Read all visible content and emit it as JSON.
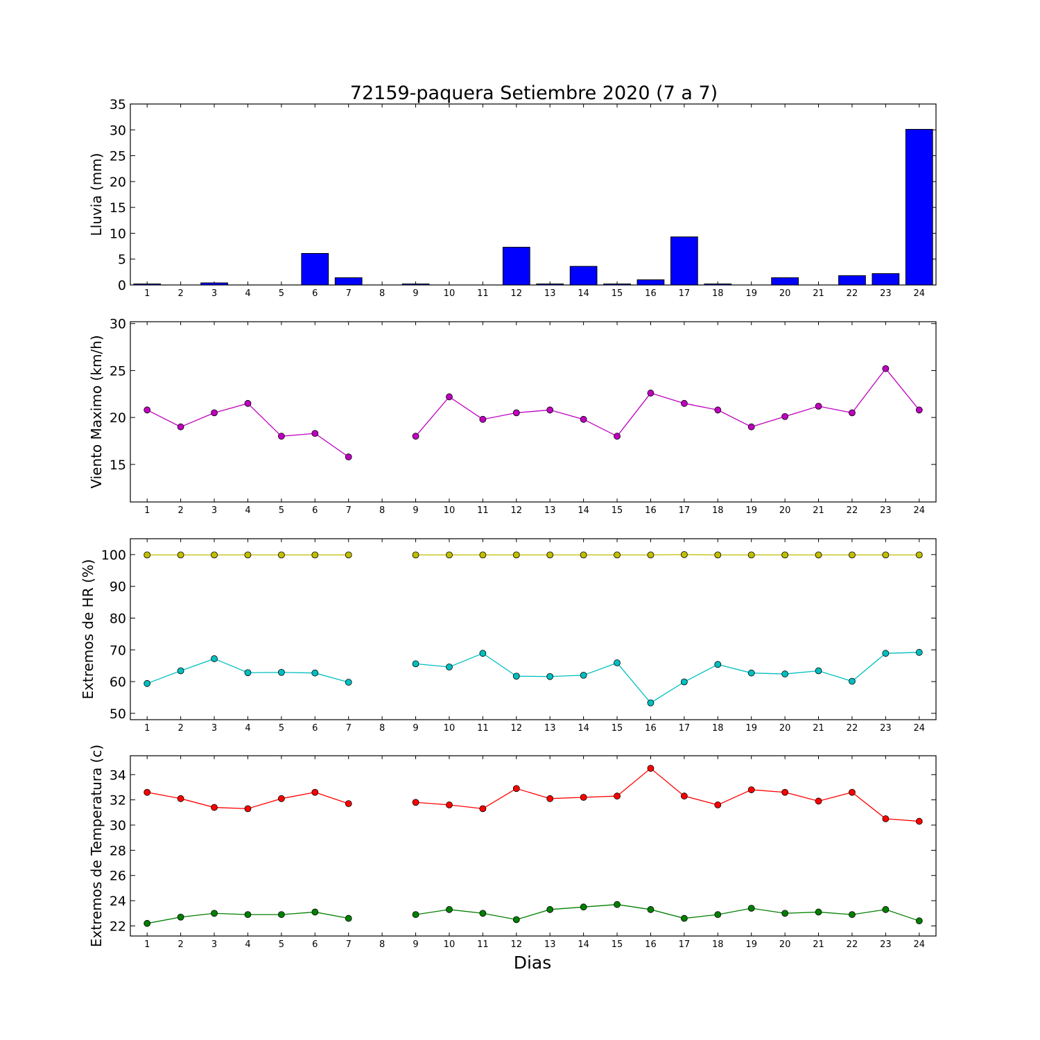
{
  "chart_data": {
    "title": "72159-paquera Setiembre 2020  (7 a 7)",
    "xlabel": "Dias",
    "x": [
      1,
      2,
      3,
      4,
      5,
      6,
      7,
      8,
      9,
      10,
      11,
      12,
      13,
      14,
      15,
      16,
      17,
      18,
      19,
      20,
      21,
      22,
      23,
      24
    ],
    "xlim": [
      0.5,
      24.5
    ],
    "panels": [
      {
        "type": "bar",
        "ylabel": "Lluvia (mm)",
        "ylim": [
          0,
          35
        ],
        "yticks": [
          0,
          5,
          10,
          15,
          20,
          25,
          30,
          35
        ],
        "series": [
          {
            "color": "#0000ff",
            "values": [
              0.2,
              0,
              0.4,
              0,
              0,
              6.1,
              1.4,
              0,
              0.2,
              0,
              0,
              7.3,
              0.2,
              3.6,
              0.2,
              1.0,
              9.3,
              0.2,
              0,
              1.4,
              0,
              1.8,
              2.2,
              30.1
            ]
          }
        ]
      },
      {
        "type": "line",
        "ylabel": "Viento Maximo (km/h)",
        "ylim": [
          11,
          30.2
        ],
        "yticks": [
          15,
          20,
          25,
          30
        ],
        "series": [
          {
            "color": "#bf00bf",
            "values": [
              20.8,
              19.0,
              20.5,
              21.5,
              18.0,
              18.3,
              15.8,
              null,
              18.0,
              22.2,
              19.8,
              20.5,
              20.8,
              19.8,
              18.0,
              22.6,
              21.5,
              20.8,
              19.0,
              20.1,
              21.2,
              20.5,
              25.2,
              20.8
            ]
          }
        ]
      },
      {
        "type": "line",
        "ylabel": "Extremos de HR (%)",
        "ylim": [
          48,
          105
        ],
        "yticks": [
          50,
          60,
          70,
          80,
          90,
          100
        ],
        "series": [
          {
            "color": "#bfbf00",
            "values": [
              99.9,
              99.9,
              99.9,
              99.9,
              99.9,
              99.9,
              99.9,
              null,
              99.9,
              99.9,
              99.9,
              99.9,
              99.9,
              99.9,
              99.9,
              99.9,
              100.0,
              99.9,
              99.9,
              99.9,
              99.9,
              99.9,
              99.9,
              99.9
            ]
          },
          {
            "color": "#00bfbf",
            "values": [
              59.4,
              63.4,
              67.2,
              62.8,
              62.9,
              62.7,
              59.8,
              null,
              65.6,
              64.6,
              68.9,
              61.7,
              61.6,
              62.0,
              65.9,
              53.3,
              59.9,
              65.4,
              62.7,
              62.4,
              63.4,
              60.1,
              68.9,
              69.2
            ]
          }
        ]
      },
      {
        "type": "line",
        "ylabel": "Extremos de Temperatura (c)",
        "ylim": [
          21.2,
          35.5
        ],
        "yticks": [
          22,
          24,
          26,
          28,
          30,
          32,
          34
        ],
        "series": [
          {
            "color": "#ff0000",
            "values": [
              32.6,
              32.1,
              31.4,
              31.3,
              32.1,
              32.6,
              31.7,
              null,
              31.8,
              31.6,
              31.3,
              32.9,
              32.1,
              32.2,
              32.3,
              34.5,
              32.3,
              31.6,
              32.8,
              32.6,
              31.9,
              32.6,
              30.5,
              30.3
            ]
          },
          {
            "color": "#007f00",
            "values": [
              22.2,
              22.7,
              23.0,
              22.9,
              22.9,
              23.1,
              22.6,
              null,
              22.9,
              23.3,
              23.0,
              22.5,
              23.3,
              23.5,
              23.7,
              23.3,
              22.6,
              22.9,
              23.4,
              23.0,
              23.1,
              22.9,
              23.3,
              22.4
            ]
          }
        ]
      }
    ]
  }
}
